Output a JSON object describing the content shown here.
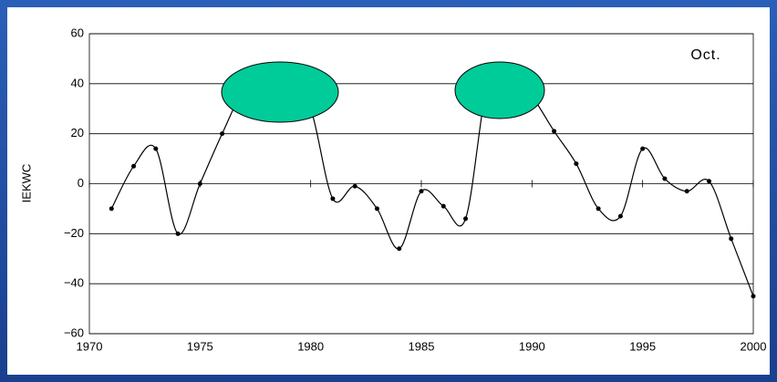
{
  "chart_data": {
    "type": "line",
    "y_label": "IEKWC",
    "annotation": "Oct.",
    "x": [
      1971,
      1972,
      1973,
      1974,
      1975,
      1976,
      1977,
      1978,
      1979,
      1980,
      1981,
      1982,
      1983,
      1984,
      1985,
      1986,
      1987,
      1988,
      1989,
      1990,
      1991,
      1992,
      1993,
      1994,
      1995,
      1996,
      1997,
      1998,
      1999,
      2000
    ],
    "series": [
      {
        "name": "IEKWC",
        "color": "#000000",
        "values": [
          -10,
          7,
          14,
          -20,
          0,
          20,
          38,
          45,
          42,
          30,
          -6,
          -1,
          -10,
          -26,
          -3,
          -9,
          -14,
          40,
          45,
          35,
          21,
          8,
          -10,
          -13,
          14,
          2,
          -3,
          1,
          -22,
          -45
        ]
      }
    ],
    "xlim": [
      1970,
      2000
    ],
    "xticks": [
      1970,
      1975,
      1980,
      1985,
      1990,
      1995,
      2000
    ],
    "ylim": [
      -60,
      60
    ],
    "yticks": [
      60,
      40,
      20,
      0,
      {
        "value": -20,
        "label": "−20"
      },
      {
        "value": -40,
        "label": "−40"
      },
      {
        "value": -60,
        "label": "−60"
      }
    ],
    "grid": true
  }
}
